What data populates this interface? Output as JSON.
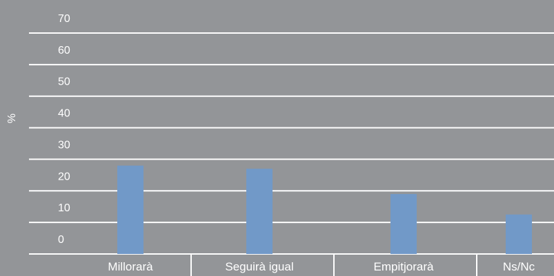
{
  "chart_data": {
    "type": "bar",
    "categories": [
      "Millorarà",
      "Seguirà igual",
      "Empitjorarà",
      "Ns/Nc"
    ],
    "values": [
      28,
      27,
      19,
      12.5
    ],
    "ylabel": "%",
    "xlabel": "",
    "yticks": [
      0,
      10,
      20,
      30,
      40,
      50,
      60,
      70
    ],
    "ylim": [
      0,
      70
    ],
    "grid": true,
    "colors": {
      "background": "#939598",
      "bar": "#7199c8",
      "grid": "#ffffff",
      "text": "#ffffff"
    }
  }
}
